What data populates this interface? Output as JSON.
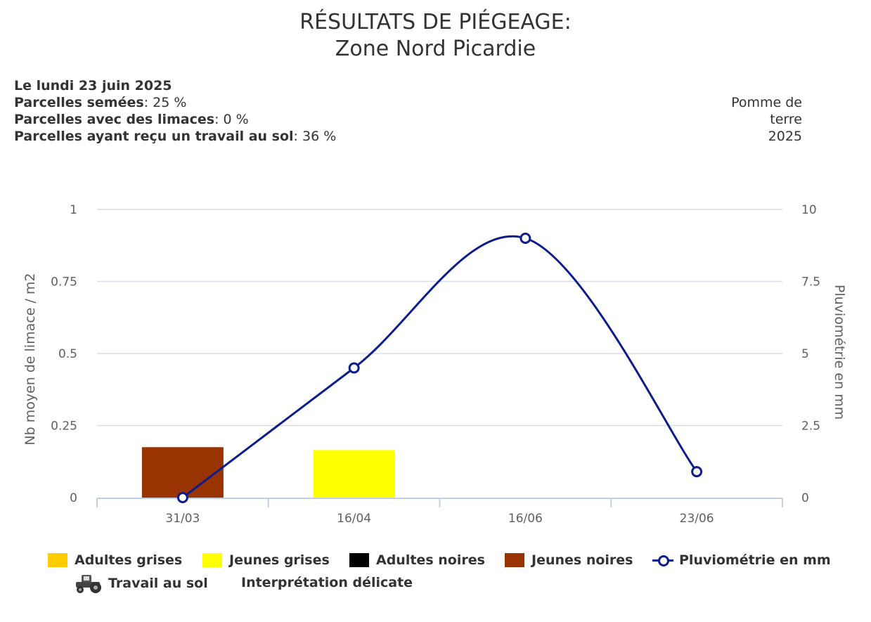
{
  "header": {
    "title_line1": "RÉSULTATS DE PIÉGEAGE:",
    "title_line2": "Zone Nord Picardie"
  },
  "info": {
    "date": "Le lundi 23 juin 2025",
    "rows": [
      {
        "label": "Parcelles semées",
        "value": ": 25 %"
      },
      {
        "label": "Parcelles avec des limaces",
        "value": ": 0 %"
      },
      {
        "label": "Parcelles ayant reçu un travail au sol",
        "value": ": 36 %"
      }
    ]
  },
  "crop": {
    "line1": "Pomme de",
    "line2": "terre",
    "line3": "2025"
  },
  "chart_data": {
    "type": "bar",
    "categories": [
      "31/03",
      "16/04",
      "16/06",
      "23/06"
    ],
    "ylabel": "Nb moyen de limace / m2",
    "y2label": "Pluviométrie en mm",
    "ylim": [
      0,
      1
    ],
    "y2lim": [
      0,
      10
    ],
    "yticks": [
      "0",
      "0.25",
      "0.5",
      "0.75",
      "1"
    ],
    "y2ticks": [
      "0",
      "2.5",
      "5",
      "7.5",
      "10"
    ],
    "grid": true,
    "series": [
      {
        "name": "Adultes grises",
        "type": "bar",
        "color": "#ffcc00",
        "values": [
          0,
          0,
          0,
          0
        ]
      },
      {
        "name": "Jeunes grises",
        "type": "bar",
        "color": "#ffff00",
        "values": [
          0,
          0.165,
          0,
          0
        ]
      },
      {
        "name": "Adultes noires",
        "type": "bar",
        "color": "#000000",
        "values": [
          0,
          0,
          0,
          0
        ]
      },
      {
        "name": "Jeunes noires",
        "type": "bar",
        "color": "#993300",
        "values": [
          0.175,
          0,
          0,
          0
        ]
      },
      {
        "name": "Pluviométrie en mm",
        "type": "line",
        "axis": "right",
        "color": "#0d1e8c",
        "values": [
          0,
          4.5,
          9,
          0.9
        ]
      }
    ],
    "legend": {
      "items": [
        "Adultes grises",
        "Jeunes grises",
        "Adultes noires",
        "Jeunes noires",
        "Pluviométrie en mm"
      ],
      "extra": [
        "Travail au sol",
        "Interprétation délicate"
      ],
      "placement": "bottom"
    }
  }
}
